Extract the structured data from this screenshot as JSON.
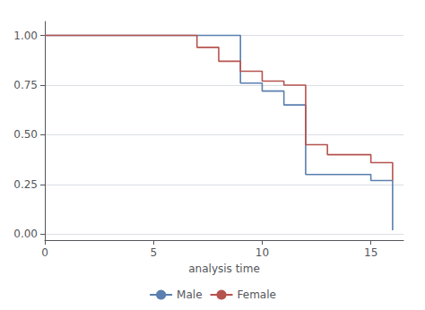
{
  "chart_data": {
    "type": "line",
    "xlabel": "analysis time",
    "series": [
      {
        "name": "Male",
        "color": "#5b7fae",
        "x": [
          0,
          9,
          9,
          10,
          10,
          11,
          11,
          12,
          12,
          15,
          15,
          16,
          16
        ],
        "values": [
          1.0,
          1.0,
          0.76,
          0.76,
          0.72,
          0.72,
          0.65,
          0.65,
          0.3,
          0.3,
          0.27,
          0.27,
          0.02
        ]
      },
      {
        "name": "Female",
        "color": "#b5534e",
        "x": [
          0,
          7,
          7,
          8,
          8,
          9,
          9,
          10,
          10,
          11,
          11,
          12,
          12,
          13,
          13,
          15,
          15,
          16,
          16
        ],
        "values": [
          1.0,
          1.0,
          0.94,
          0.94,
          0.87,
          0.87,
          0.82,
          0.82,
          0.77,
          0.77,
          0.75,
          0.75,
          0.45,
          0.45,
          0.4,
          0.4,
          0.36,
          0.36,
          0.27
        ]
      }
    ],
    "xlim": [
      0,
      16.5
    ],
    "xticks": [
      0,
      5,
      10,
      15
    ],
    "ylim": [
      -0.03,
      1.07
    ],
    "yticks": [
      {
        "value": 0.0,
        "label": "0.00"
      },
      {
        "value": 0.25,
        "label": "0.25"
      },
      {
        "value": 0.5,
        "label": "0.50"
      },
      {
        "value": 0.75,
        "label": "0.75"
      },
      {
        "value": 1.0,
        "label": "1.00"
      }
    ],
    "grid": true,
    "legend": "bottom"
  }
}
